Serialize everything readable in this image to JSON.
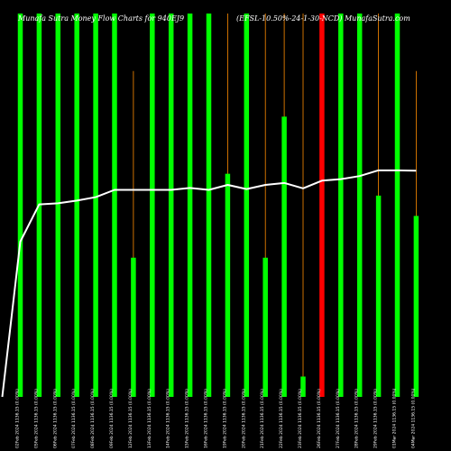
{
  "chart_data": {
    "type": "bar",
    "title_left": "Munafa Sutra Money Flow Charts for 940EJ9",
    "title_right": "(EFSL-10.50%-24-1-30-NCD) MunafaSutra.com",
    "ylim": [
      0,
      100
    ],
    "categories": [
      "02Feb 2024 1136.15 (0.00%)",
      "05Feb 2024 1136.15 (0.00%)",
      "06Feb 2024 1136.15 (0.00%)",
      "07Feb 2024 1136.15 (0.00%)",
      "08Feb 2024 1136.15 (0.00%)",
      "09Feb 2024 1136.15 (0.00%)",
      "12Feb 2024 1136.15 (0.00%)",
      "13Feb 2024 1136.15 (0.00%)",
      "14Feb 2024 1136.15 (0.00%)",
      "15Feb 2024 1136.15 (0.00%)",
      "16Feb 2024 1136.15 (0.00%)",
      "19Feb 2024 1136.15 (0.00%)",
      "20Feb 2024 1136.15 (0.00%)",
      "21Feb 2024 1136.15 (0.00%)",
      "22Feb 2024 1136.15 (0.00%)",
      "23Feb 2024 1136.15 (0.00%)",
      "26Feb 2024 1136.15 (0.00%)",
      "27Feb 2024 1136.15 (0.00%)",
      "28Feb 2024 1136.15 (0.00%)",
      "29Feb 2024 1136.15 (0.00%)",
      "01Mar 2024 1136.15 (0.00%)",
      "04Mar 2024 1136.15 (0.00%)"
    ],
    "bars": [
      {
        "value": 100,
        "color": "#00ff00"
      },
      {
        "value": 100,
        "color": "#00ff00"
      },
      {
        "value": 100,
        "color": "#00ff00"
      },
      {
        "value": 100,
        "color": "#00ff00"
      },
      {
        "value": 100,
        "color": "#00ff00"
      },
      {
        "value": 100,
        "color": "#00ff00"
      },
      {
        "value": 36.3,
        "color": "#00ff00"
      },
      {
        "value": 100,
        "color": "#00ff00"
      },
      {
        "value": 100,
        "color": "#00ff00"
      },
      {
        "value": 100,
        "color": "#00ff00"
      },
      {
        "value": 100,
        "color": "#00ff00"
      },
      {
        "value": 58.2,
        "color": "#00ff00"
      },
      {
        "value": 100,
        "color": "#00ff00"
      },
      {
        "value": 36.3,
        "color": "#00ff00"
      },
      {
        "value": 73.1,
        "color": "#00ff00"
      },
      {
        "value": 5.3,
        "color": "#00ff00"
      },
      {
        "value": 100,
        "color": "#ff0000"
      },
      {
        "value": 100,
        "color": "#00ff00"
      },
      {
        "value": 100,
        "color": "#00ff00"
      },
      {
        "value": 52.5,
        "color": "#00ff00"
      },
      {
        "value": 100,
        "color": "#00ff00"
      },
      {
        "value": 47.2,
        "color": "#00ff00"
      }
    ],
    "wicks": [
      100,
      100,
      100,
      100,
      100,
      100,
      85,
      100,
      100,
      100,
      100,
      100,
      100,
      100,
      100,
      100,
      100,
      100,
      100,
      100,
      85,
      85
    ],
    "line": {
      "color": "#ffffff",
      "values": [
        40.5,
        50.2,
        50.5,
        51.2,
        52.1,
        54,
        54,
        54,
        54,
        54.5,
        54,
        55.3,
        54.2,
        55.3,
        55.8,
        54.4,
        56.4,
        56.8,
        57.6,
        59.1,
        59.1,
        59
      ]
    },
    "line_start": 0,
    "wick_color": "#ff8c00",
    "grid": false
  }
}
